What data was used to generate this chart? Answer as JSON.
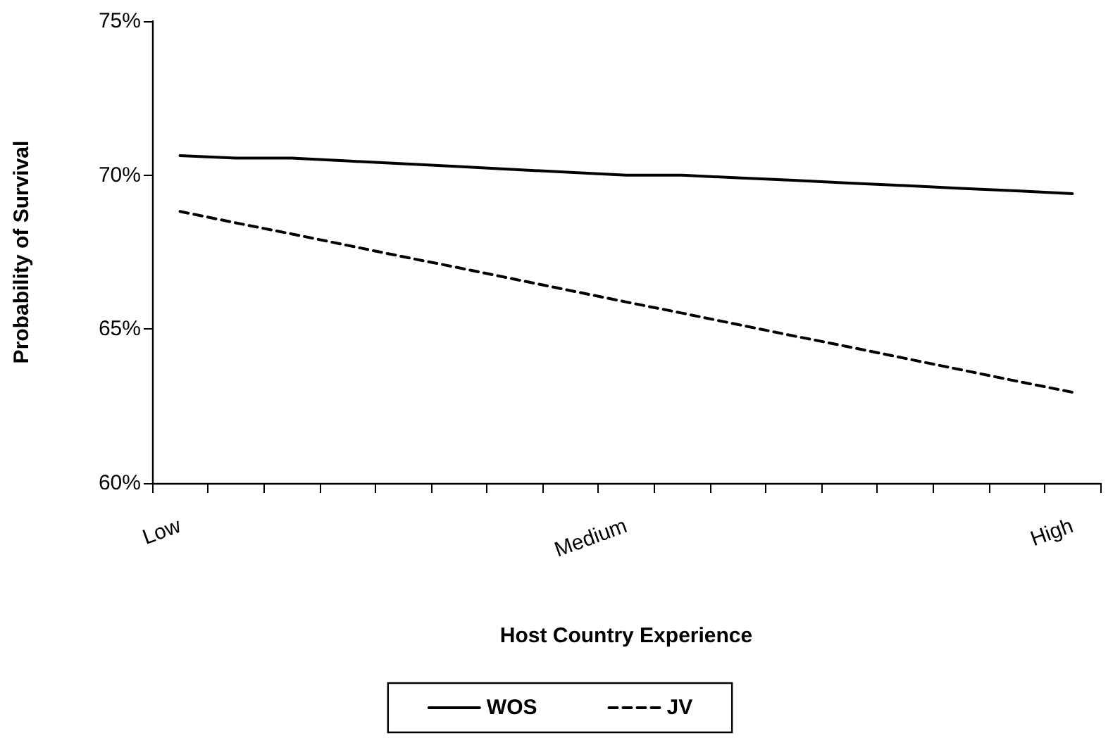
{
  "chart_data": {
    "type": "line",
    "xlabel": "Host Country Experience",
    "ylabel": "Probability of Survival",
    "categories": [
      "Low",
      null,
      null,
      null,
      null,
      null,
      null,
      null,
      "Medium",
      null,
      null,
      null,
      null,
      null,
      null,
      null,
      "High"
    ],
    "series": [
      {
        "name": "WOS",
        "color": "#000000",
        "line_style": "solid",
        "values": [
          70.63,
          70.55,
          70.55,
          70.46,
          70.37,
          70.28,
          70.18,
          70.09,
          70.0,
          70.0,
          69.91,
          69.83,
          69.74,
          69.66,
          69.57,
          69.49,
          69.4
        ]
      },
      {
        "name": "JV",
        "color": "#000000",
        "line_style": "dashed",
        "values": [
          68.82,
          68.45,
          68.09,
          67.72,
          67.35,
          66.99,
          66.62,
          66.25,
          65.88,
          65.52,
          65.15,
          64.78,
          64.42,
          64.05,
          63.68,
          63.31,
          62.95
        ]
      }
    ],
    "ylim": [
      60,
      75
    ],
    "yticks": [
      {
        "value": 60,
        "label": "60%"
      },
      {
        "value": 65,
        "label": "65%"
      },
      {
        "value": 70,
        "label": "70%"
      },
      {
        "value": 75,
        "label": "75%"
      }
    ],
    "grid": false,
    "legend": "bottom",
    "marker": "none"
  }
}
